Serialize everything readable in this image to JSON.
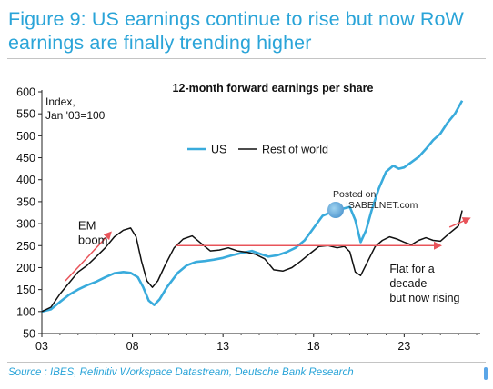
{
  "title": {
    "line1": "Figure 9: US earnings continue to rise but now RoW",
    "line2": "earnings are finally trending higher"
  },
  "source": "Source : IBES, Refinitiv Workspace Datastream, Deutsche Bank Research",
  "watermark": {
    "line1": "Posted on",
    "line2": "ISABELNET.com"
  },
  "colors": {
    "accent": "#2aa4d8",
    "us": "#39abdc",
    "row": "#111111",
    "arrow": "#e8545a"
  },
  "chart_data": {
    "type": "line",
    "title": "12-month forward earnings per share",
    "index_label": [
      "Index,",
      "Jan '03=100"
    ],
    "xlabel": "",
    "ylabel": "",
    "xlim": [
      2003.0,
      2027.2
    ],
    "ylim": [
      50,
      600
    ],
    "xticks": [
      2003,
      2008,
      2013,
      2018,
      2023
    ],
    "xtick_labels": [
      "03",
      "08",
      "13",
      "18",
      "23"
    ],
    "yticks": [
      50,
      100,
      150,
      200,
      250,
      300,
      350,
      400,
      450,
      500,
      550,
      600
    ],
    "grid": false,
    "legend": "top-center",
    "series": [
      {
        "name": "US",
        "x": [
          2003.0,
          2003.5,
          2004.0,
          2004.5,
          2005.0,
          2005.5,
          2006.0,
          2006.5,
          2007.0,
          2007.5,
          2007.9,
          2008.3,
          2008.6,
          2008.9,
          2009.2,
          2009.5,
          2009.9,
          2010.5,
          2011.0,
          2011.5,
          2012.0,
          2012.5,
          2013.0,
          2013.5,
          2014.0,
          2014.6,
          2015.0,
          2015.5,
          2016.0,
          2016.5,
          2017.0,
          2017.5,
          2018.0,
          2018.5,
          2018.9,
          2019.3,
          2019.7,
          2020.0,
          2020.3,
          2020.6,
          2020.9,
          2021.2,
          2021.6,
          2022.0,
          2022.4,
          2022.7,
          2023.0,
          2023.4,
          2023.8,
          2024.2,
          2024.6,
          2025.0,
          2025.4,
          2025.8,
          2026.2
        ],
        "y": [
          100,
          105,
          122,
          138,
          150,
          160,
          168,
          178,
          187,
          190,
          188,
          178,
          155,
          125,
          115,
          128,
          155,
          188,
          205,
          213,
          215,
          218,
          222,
          228,
          233,
          238,
          232,
          225,
          228,
          235,
          245,
          262,
          290,
          318,
          325,
          328,
          335,
          338,
          308,
          258,
          285,
          330,
          380,
          418,
          432,
          425,
          428,
          440,
          452,
          470,
          490,
          505,
          530,
          550,
          580
        ]
      },
      {
        "name": "Rest of world",
        "x": [
          2003.0,
          2003.5,
          2004.0,
          2004.5,
          2005.0,
          2005.5,
          2006.0,
          2006.5,
          2007.0,
          2007.5,
          2007.9,
          2008.2,
          2008.5,
          2008.8,
          2009.1,
          2009.4,
          2009.8,
          2010.3,
          2010.8,
          2011.3,
          2011.8,
          2012.3,
          2012.8,
          2013.3,
          2013.8,
          2014.3,
          2014.8,
          2015.3,
          2015.8,
          2016.3,
          2016.8,
          2017.3,
          2017.8,
          2018.3,
          2018.8,
          2019.3,
          2019.7,
          2020.0,
          2020.3,
          2020.6,
          2021.0,
          2021.4,
          2021.8,
          2022.2,
          2022.6,
          2023.0,
          2023.4,
          2023.8,
          2024.2,
          2024.6,
          2025.0,
          2025.5,
          2026.0,
          2026.2
        ],
        "y": [
          100,
          110,
          140,
          165,
          190,
          205,
          225,
          245,
          270,
          285,
          290,
          270,
          215,
          170,
          155,
          170,
          205,
          245,
          265,
          272,
          255,
          238,
          240,
          245,
          238,
          235,
          230,
          220,
          195,
          192,
          200,
          215,
          232,
          248,
          250,
          245,
          248,
          236,
          190,
          182,
          215,
          248,
          262,
          270,
          265,
          258,
          252,
          262,
          268,
          262,
          260,
          278,
          295,
          330
        ]
      }
    ],
    "annotations": [
      {
        "text": [
          "EM",
          "boom"
        ],
        "x": 2004.0,
        "y": 287
      },
      {
        "text": [
          "Flat for a",
          "decade",
          "but now rising"
        ],
        "x": 2022.8,
        "y": 215
      }
    ],
    "arrows": [
      {
        "from": [
          2004.3,
          170
        ],
        "to": [
          2006.8,
          280
        ]
      },
      {
        "from": [
          2010.4,
          250
        ],
        "to": [
          2025.0,
          250
        ]
      },
      {
        "from": [
          2025.5,
          292
        ],
        "to": [
          2026.6,
          312
        ]
      }
    ]
  }
}
